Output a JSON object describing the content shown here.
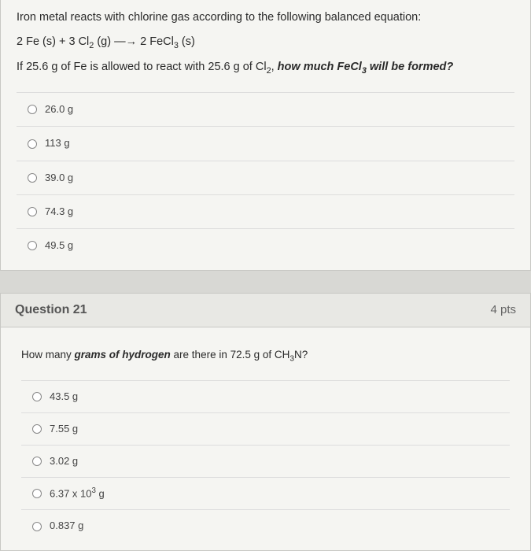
{
  "q1": {
    "prompt_line1": "Iron metal reacts with chlorine gas according to the following balanced equation:",
    "equation_plain": "2 Fe (s) + 3 Cl2 (g) ---> 2 FeCl3 (s)",
    "prompt_line2_prefix": "If 25.6 g of Fe is allowed to react with 25.6 g of Cl",
    "prompt_line2_sub": "2",
    "prompt_line2_mid": ", ",
    "prompt_line2_bold1": "how much FeCl",
    "prompt_line2_bold_sub": "3",
    "prompt_line2_bold2": " will be formed?",
    "options": [
      "26.0 g",
      "113 g",
      "39.0 g",
      "74.3 g",
      "49.5 g"
    ]
  },
  "q2": {
    "header": "Question 21",
    "pts": "4 pts",
    "prompt_prefix": "How many ",
    "prompt_bold": "grams of hydrogen",
    "prompt_mid": " are there in 72.5 g of CH",
    "prompt_sub": "3",
    "prompt_suffix": "N?",
    "options_raw": [
      "43.5 g",
      "7.55 g",
      "3.02 g",
      "6.37 x 10^3 g",
      "0.837 g"
    ]
  },
  "colors": {
    "page_bg": "#d8d8d4",
    "card_bg": "#f5f5f2",
    "header_bg": "#e8e8e4",
    "border": "#c8c8c4",
    "divider": "#dddddd",
    "text": "#2a2a2a"
  }
}
